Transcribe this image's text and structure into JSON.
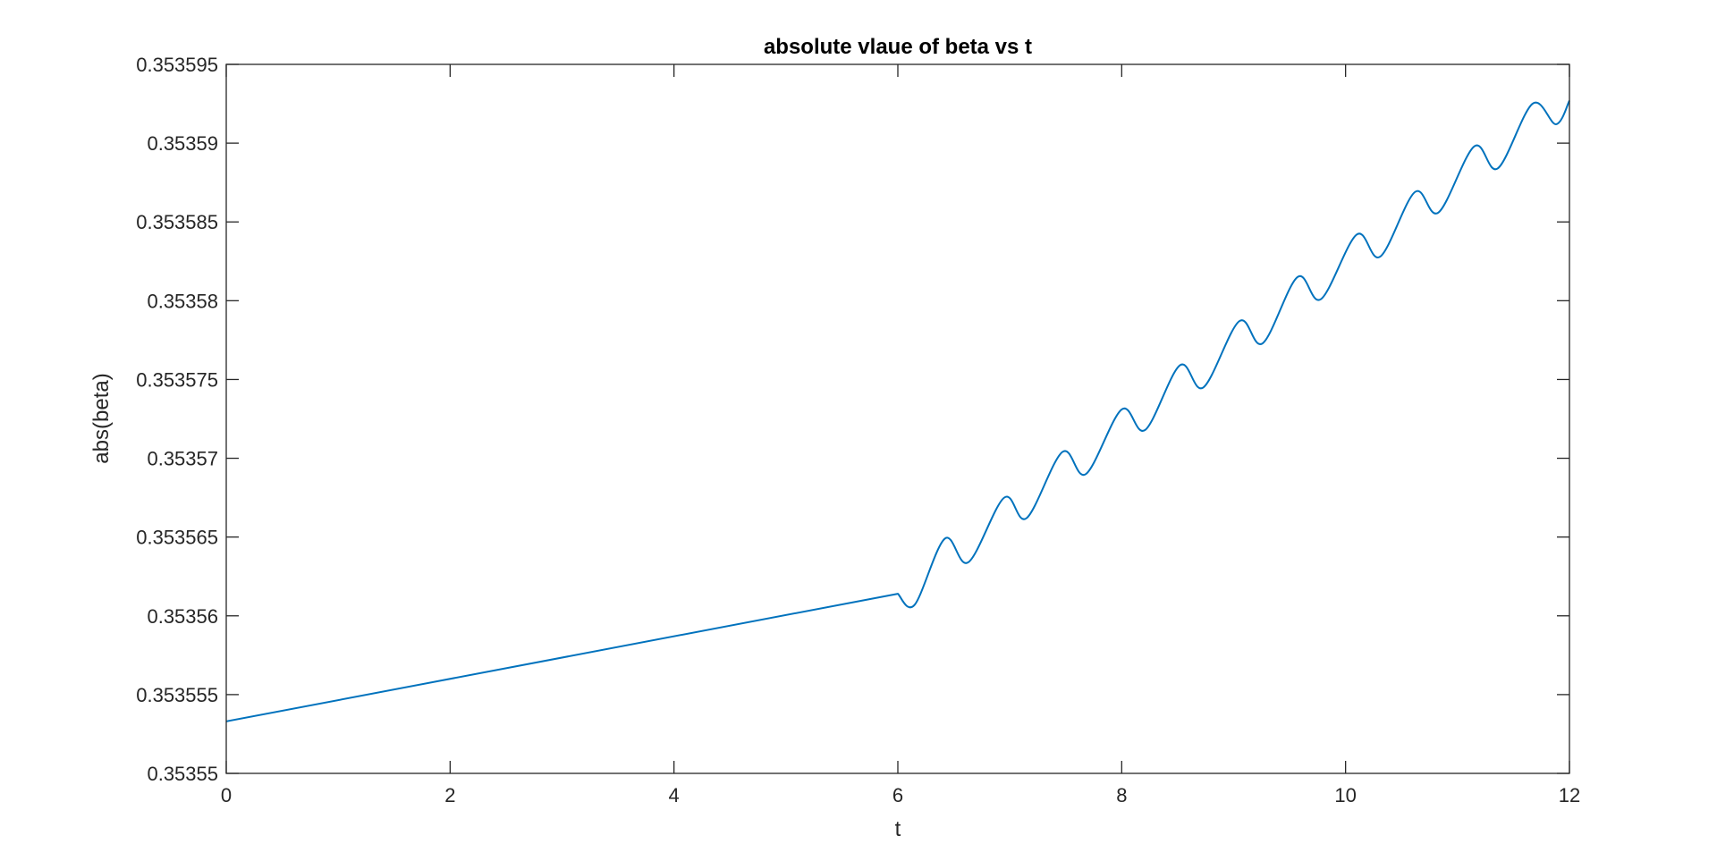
{
  "chart_data": {
    "type": "line",
    "title": "absolute vlaue of beta vs t",
    "xlabel": "t",
    "ylabel": "abs(beta)",
    "xlim": [
      0,
      12
    ],
    "ylim": [
      0.35355,
      0.353595
    ],
    "xticks": [
      0,
      2,
      4,
      6,
      8,
      10,
      12
    ],
    "xtick_labels": [
      "0",
      "2",
      "4",
      "6",
      "8",
      "10",
      "12"
    ],
    "yticks": [
      0.35355,
      0.353555,
      0.35356,
      0.353565,
      0.35357,
      0.353575,
      0.35358,
      0.353585,
      0.35359,
      0.353595
    ],
    "ytick_labels": [
      "0.35355",
      "0.353555",
      "0.35356",
      "0.353565",
      "0.35357",
      "0.353575",
      "0.35358",
      "0.353585",
      "0.35359",
      "0.353595"
    ],
    "grid": false,
    "box": true,
    "series": [
      {
        "color": "#0072BD",
        "x": [
          0,
          6,
          6.15,
          6.42,
          6.63,
          6.95,
          7.15,
          7.47,
          7.68,
          8.0,
          8.21,
          8.52,
          8.73,
          9.05,
          9.26,
          9.57,
          9.78,
          10.1,
          10.31,
          10.62,
          10.83,
          11.15,
          11.36,
          11.67,
          11.88,
          12.0
        ],
        "y": [
          0.3535533,
          0.3535614,
          0.3535607,
          0.3535649,
          0.3535634,
          0.3535675,
          0.3535662,
          0.3535704,
          0.353569,
          0.3535731,
          0.3535718,
          0.3535759,
          0.3535745,
          0.3535787,
          0.3535773,
          0.3535815,
          0.3535801,
          0.3535842,
          0.3535828,
          0.3535869,
          0.3535856,
          0.3535898,
          0.3535884,
          0.3535925,
          0.3535912,
          0.3535927
        ]
      }
    ]
  }
}
